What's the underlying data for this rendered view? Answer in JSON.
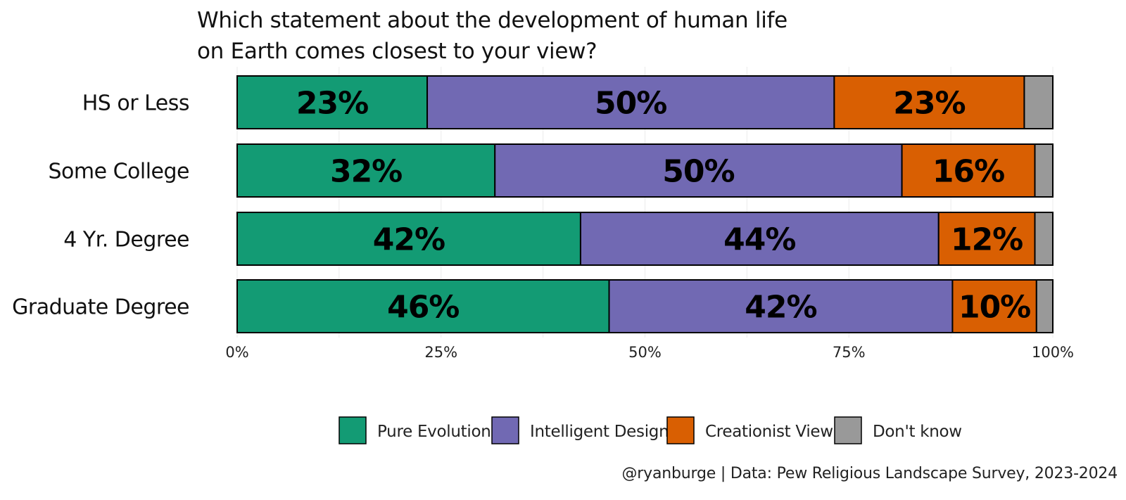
{
  "chart_data": {
    "type": "bar",
    "orientation": "horizontal",
    "stacked": true,
    "title_lines": [
      "Which statement about the development of human life",
      "on Earth comes closest to your view?"
    ],
    "categories": [
      "HS or Less",
      "Some College",
      "4 Yr. Degree",
      "Graduate Degree"
    ],
    "series": [
      {
        "name": "Pure Evolution",
        "color": "#139b74",
        "values": [
          23.3,
          31.6,
          42.1,
          45.6
        ],
        "labels": [
          "23%",
          "32%",
          "42%",
          "46%"
        ]
      },
      {
        "name": "Intelligent Design",
        "color": "#7169b3",
        "values": [
          49.9,
          49.9,
          43.9,
          42.1
        ],
        "labels": [
          "50%",
          "50%",
          "44%",
          "42%"
        ]
      },
      {
        "name": "Creationist View",
        "color": "#d95f02",
        "values": [
          23.3,
          16.3,
          11.8,
          10.3
        ],
        "labels": [
          "23%",
          "16%",
          "12%",
          "10%"
        ]
      },
      {
        "name": "Don't know",
        "color": "#999999",
        "values": [
          3.5,
          2.2,
          2.2,
          2.0
        ],
        "labels": [
          "",
          "",
          "",
          ""
        ]
      }
    ],
    "xlim": [
      0,
      100
    ],
    "xticks": [
      "0%",
      "25%",
      "50%",
      "75%",
      "100%"
    ],
    "xlabel": "",
    "ylabel": "",
    "grid": true,
    "legend_position": "bottom",
    "caption": "@ryanburge | Data: Pew Religious Landscape Survey, 2023-2024"
  }
}
